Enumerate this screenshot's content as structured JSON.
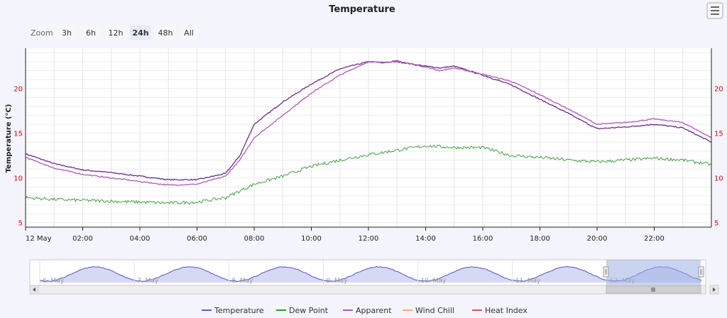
{
  "title": "Temperature",
  "menu_icon": "hamburger-menu-icon",
  "zoom": {
    "label": "Zoom",
    "buttons": [
      "3h",
      "6h",
      "12h",
      "24h",
      "48h",
      "All"
    ],
    "selected": "24h"
  },
  "colors": {
    "temperature": "#6b2a8c",
    "temperature_legend": "#5b5bd6",
    "dew_point": "#2e9a2e",
    "apparent": "#b05ab8",
    "wind_chill": "#f0b070",
    "heat_index": "#e05050",
    "axis_labels": "#e00000",
    "navigator_fill": "#c8ccf0",
    "navigator_selection": "#a6b2e6"
  },
  "legend": [
    "Temperature",
    "Dew Point",
    "Apparent",
    "Wind Chill",
    "Heat Index"
  ],
  "navigator": {
    "day_labels": [
      "6. May",
      "7. May",
      "8. May",
      "9. May",
      "10. May",
      "11. May",
      "12. May"
    ],
    "scroll_left_icon": "chevron-left-icon",
    "scroll_right_icon": "chevron-right-icon",
    "grip_icon": "grip-icon"
  },
  "chart_data": {
    "type": "line",
    "title": "Temperature",
    "ylabel": "Temperature (°C)",
    "xlabel": "",
    "x_ticks": [
      "12 May",
      "02:00",
      "04:00",
      "06:00",
      "08:00",
      "10:00",
      "12:00",
      "14:00",
      "16:00",
      "18:00",
      "20:00",
      "22:00"
    ],
    "y_ticks": [
      5,
      10,
      15,
      20
    ],
    "ylim": [
      4.5,
      24.5
    ],
    "xlim_hours": [
      0,
      24
    ],
    "grid": true,
    "legend_position": "bottom",
    "series": [
      {
        "name": "Temperature",
        "x": [
          0,
          1,
          2,
          3,
          4,
          5,
          6,
          7,
          7.5,
          8,
          9,
          10,
          11,
          12,
          12.5,
          13,
          14,
          14.5,
          15,
          16,
          17,
          18,
          19,
          20,
          21,
          22,
          23,
          24
        ],
        "values": [
          12.7,
          11.6,
          10.9,
          10.6,
          10.2,
          9.8,
          9.8,
          10.5,
          12.5,
          16.0,
          18.5,
          20.5,
          22.2,
          23.0,
          22.9,
          23.0,
          22.5,
          22.3,
          22.5,
          21.5,
          20.4,
          18.8,
          17.2,
          15.5,
          15.7,
          16.0,
          15.6,
          14.0
        ]
      },
      {
        "name": "Apparent",
        "x": [
          0,
          1,
          2,
          3,
          4,
          5,
          6,
          7,
          7.5,
          8,
          9,
          10,
          11,
          12,
          12.5,
          13,
          14,
          14.5,
          15,
          16,
          17,
          18,
          19,
          20,
          21,
          22,
          23,
          24
        ],
        "values": [
          12.3,
          11.1,
          10.4,
          10.0,
          9.6,
          9.2,
          9.3,
          10.2,
          12.0,
          14.5,
          17.0,
          19.5,
          21.5,
          23.0,
          22.9,
          23.1,
          22.4,
          22.0,
          22.3,
          21.6,
          20.8,
          19.3,
          17.7,
          16.0,
          16.2,
          16.6,
          16.2,
          14.5
        ]
      },
      {
        "name": "Dew Point",
        "x": [
          0,
          1,
          2,
          3,
          4,
          5,
          6,
          7,
          8,
          9,
          10,
          11,
          12,
          13,
          14,
          15,
          16,
          17,
          18,
          19,
          20,
          21,
          22,
          23,
          24
        ],
        "values": [
          7.8,
          7.6,
          7.5,
          7.4,
          7.3,
          7.2,
          7.3,
          7.8,
          9.3,
          10.2,
          11.3,
          12.0,
          12.6,
          13.1,
          13.6,
          13.4,
          13.4,
          12.5,
          12.3,
          12.0,
          11.8,
          12.0,
          12.2,
          12.0,
          11.5
        ]
      },
      {
        "name": "Wind Chill",
        "x": [],
        "values": []
      },
      {
        "name": "Heat Index",
        "x": [],
        "values": []
      }
    ]
  }
}
